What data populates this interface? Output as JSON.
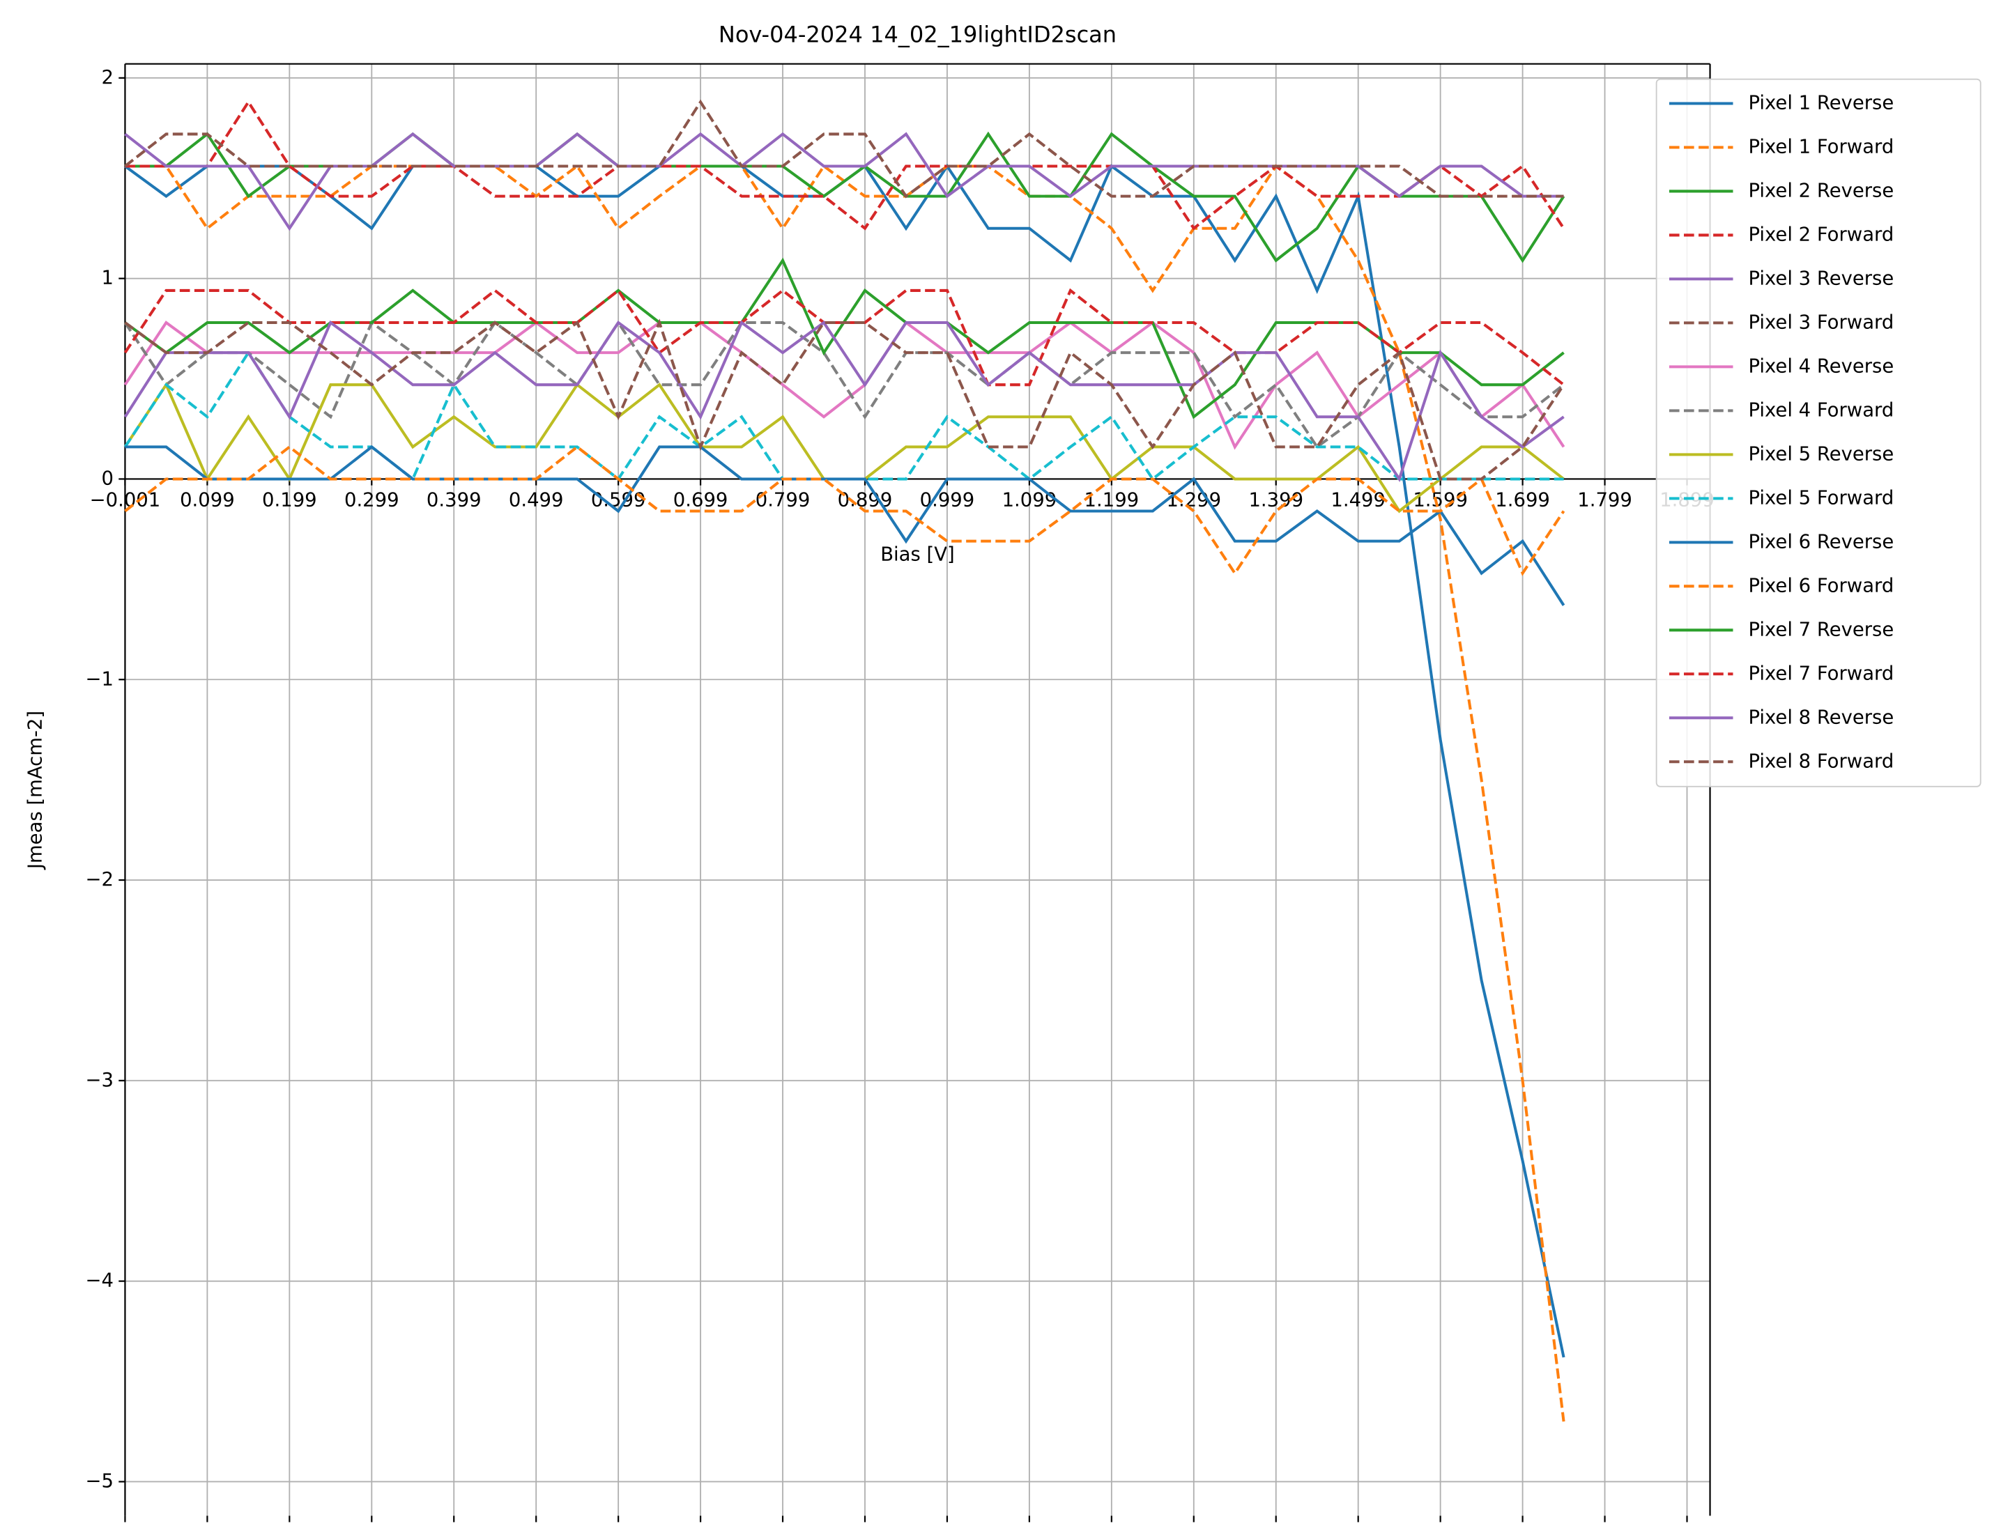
{
  "chart_data": {
    "type": "line",
    "title": "Nov-04-2024 14_02_19lightID2scan",
    "x_label": "Bias [V]",
    "y_label": "Jmeas [mAcm-2]",
    "x": [
      -0.001,
      0.049,
      0.099,
      0.149,
      0.199,
      0.249,
      0.299,
      0.349,
      0.399,
      0.449,
      0.499,
      0.549,
      0.599,
      0.649,
      0.699,
      0.749,
      0.799,
      0.849,
      0.899,
      0.949,
      0.999,
      1.049,
      1.099,
      1.149,
      1.199,
      1.249,
      1.299,
      1.349,
      1.399,
      1.449,
      1.499,
      1.549,
      1.599,
      1.649,
      1.699,
      1.749
    ],
    "xlim": [
      -0.001,
      1.927
    ],
    "xticks": [
      {
        "value": -0.001,
        "label": "−0.001"
      },
      0.099,
      0.199,
      0.299,
      0.399,
      0.499,
      0.599,
      0.699,
      0.799,
      0.899,
      0.999,
      1.099,
      1.199,
      1.299,
      1.399,
      1.499,
      1.599,
      1.699,
      1.799,
      1.899
    ],
    "ylim": [
      -5.17,
      2.07
    ],
    "yticks": [
      {
        "value": -5,
        "label": "−5"
      },
      {
        "value": -4,
        "label": "−4"
      },
      {
        "value": -3,
        "label": "−3"
      },
      {
        "value": -2,
        "label": "−2"
      },
      {
        "value": -1,
        "label": "−1"
      },
      0,
      1,
      2
    ],
    "grid": true,
    "legend": "outside upper right",
    "series": [
      {
        "name": "Pixel 1 Reverse",
        "color": "#1f77b4",
        "linestyle": "solid",
        "values": [
          1.56,
          1.41,
          1.56,
          1.56,
          1.56,
          1.41,
          1.25,
          1.56,
          1.56,
          1.56,
          1.56,
          1.41,
          1.41,
          1.56,
          1.56,
          1.56,
          1.41,
          1.41,
          1.56,
          1.25,
          1.56,
          1.25,
          1.25,
          1.09,
          1.56,
          1.41,
          1.41,
          1.09,
          1.41,
          0.94,
          1.41,
          0.16,
          -1.3,
          -2.5,
          -3.4,
          -4.38
        ]
      },
      {
        "name": "Pixel 1 Forward",
        "color": "#ff7f0e",
        "linestyle": "dashed",
        "values": [
          1.56,
          1.56,
          1.25,
          1.41,
          1.41,
          1.41,
          1.56,
          1.56,
          1.56,
          1.56,
          1.41,
          1.56,
          1.25,
          1.41,
          1.56,
          1.56,
          1.25,
          1.56,
          1.41,
          1.41,
          1.56,
          1.56,
          1.41,
          1.41,
          1.25,
          0.94,
          1.25,
          1.25,
          1.56,
          1.41,
          1.09,
          0.63,
          -0.2,
          -1.5,
          -3.0,
          -4.7
        ]
      },
      {
        "name": "Pixel 2 Reverse",
        "color": "#2ca02c",
        "linestyle": "solid",
        "values": [
          1.56,
          1.56,
          1.72,
          1.41,
          1.56,
          1.56,
          1.56,
          1.72,
          1.56,
          1.56,
          1.56,
          1.72,
          1.56,
          1.56,
          1.56,
          1.56,
          1.56,
          1.41,
          1.56,
          1.41,
          1.41,
          1.72,
          1.41,
          1.41,
          1.72,
          1.56,
          1.41,
          1.41,
          1.09,
          1.25,
          1.56,
          1.41,
          1.41,
          1.41,
          1.09,
          1.41
        ]
      },
      {
        "name": "Pixel 2 Forward",
        "color": "#d62728",
        "linestyle": "dashed",
        "values": [
          1.56,
          1.56,
          1.56,
          1.88,
          1.56,
          1.41,
          1.41,
          1.56,
          1.56,
          1.41,
          1.41,
          1.41,
          1.56,
          1.56,
          1.56,
          1.41,
          1.41,
          1.41,
          1.25,
          1.56,
          1.56,
          1.56,
          1.56,
          1.56,
          1.56,
          1.56,
          1.25,
          1.41,
          1.56,
          1.41,
          1.41,
          1.41,
          1.56,
          1.41,
          1.56,
          1.25
        ]
      },
      {
        "name": "Pixel 3 Reverse",
        "color": "#9467bd",
        "linestyle": "solid",
        "values": [
          1.72,
          1.56,
          1.56,
          1.56,
          1.25,
          1.56,
          1.56,
          1.72,
          1.56,
          1.56,
          1.56,
          1.72,
          1.56,
          1.56,
          1.72,
          1.56,
          1.72,
          1.56,
          1.56,
          1.72,
          1.41,
          1.56,
          1.56,
          1.41,
          1.56,
          1.56,
          1.56,
          1.56,
          1.56,
          1.56,
          1.56,
          1.41,
          1.56,
          1.56,
          1.41,
          1.41
        ]
      },
      {
        "name": "Pixel 3 Forward",
        "color": "#8c564b",
        "linestyle": "dashed",
        "values": [
          1.56,
          1.72,
          1.72,
          1.56,
          1.56,
          1.56,
          1.56,
          1.56,
          1.56,
          1.56,
          1.56,
          1.56,
          1.56,
          1.56,
          1.88,
          1.56,
          1.56,
          1.72,
          1.72,
          1.41,
          1.56,
          1.56,
          1.72,
          1.56,
          1.41,
          1.41,
          1.56,
          1.56,
          1.56,
          1.56,
          1.56,
          1.56,
          1.41,
          1.41,
          1.41,
          1.41
        ]
      },
      {
        "name": "Pixel 4 Reverse",
        "color": "#e377c2",
        "linestyle": "solid",
        "values": [
          0.47,
          0.78,
          0.63,
          0.63,
          0.63,
          0.63,
          0.63,
          0.63,
          0.63,
          0.63,
          0.78,
          0.63,
          0.63,
          0.78,
          0.78,
          0.63,
          0.47,
          0.31,
          0.47,
          0.78,
          0.63,
          0.63,
          0.63,
          0.78,
          0.63,
          0.78,
          0.63,
          0.16,
          0.47,
          0.63,
          0.31,
          0.47,
          0.63,
          0.31,
          0.47,
          0.16
        ]
      },
      {
        "name": "Pixel 4 Forward",
        "color": "#7f7f7f",
        "linestyle": "dashed",
        "values": [
          0.78,
          0.47,
          0.63,
          0.63,
          0.47,
          0.31,
          0.78,
          0.63,
          0.47,
          0.78,
          0.63,
          0.47,
          0.78,
          0.47,
          0.47,
          0.78,
          0.78,
          0.63,
          0.31,
          0.63,
          0.63,
          0.47,
          0.63,
          0.47,
          0.63,
          0.63,
          0.63,
          0.31,
          0.47,
          0.16,
          0.31,
          0.63,
          0.47,
          0.31,
          0.31,
          0.47
        ]
      },
      {
        "name": "Pixel 5 Reverse",
        "color": "#bcbd22",
        "linestyle": "solid",
        "values": [
          0.16,
          0.47,
          0,
          0.31,
          0,
          0.47,
          0.47,
          0.16,
          0.31,
          0.16,
          0.16,
          0.47,
          0.31,
          0.47,
          0.16,
          0.16,
          0.31,
          0,
          0,
          0.16,
          0.16,
          0.31,
          0.31,
          0.31,
          0,
          0.16,
          0.16,
          0,
          0,
          0,
          0.16,
          -0.16,
          0,
          0.16,
          0.16,
          0
        ]
      },
      {
        "name": "Pixel 5 Forward",
        "color": "#17becf",
        "linestyle": "dashed",
        "values": [
          0.16,
          0.47,
          0.31,
          0.63,
          0.31,
          0.16,
          0.16,
          0,
          0.47,
          0.16,
          0.16,
          0.16,
          0,
          0.31,
          0.16,
          0.31,
          0,
          0,
          0,
          0,
          0.31,
          0.16,
          0,
          0.16,
          0.31,
          0,
          0.16,
          0.31,
          0.31,
          0.16,
          0.16,
          0,
          0,
          0,
          0,
          0
        ]
      },
      {
        "name": "Pixel 6 Reverse",
        "color": "#1f77b4",
        "linestyle": "solid",
        "values": [
          0.16,
          0.16,
          0,
          0,
          0,
          0,
          0.16,
          0,
          0,
          0,
          0,
          0,
          -0.16,
          0.16,
          0.16,
          0,
          0,
          0,
          0,
          -0.31,
          0,
          0,
          0,
          -0.16,
          -0.16,
          -0.16,
          0,
          -0.31,
          -0.31,
          -0.16,
          -0.31,
          -0.31,
          -0.16,
          -0.47,
          -0.31,
          -0.63
        ]
      },
      {
        "name": "Pixel 6 Forward",
        "color": "#ff7f0e",
        "linestyle": "dashed",
        "values": [
          -0.16,
          0,
          0,
          0,
          0.16,
          0,
          0,
          0,
          0,
          0,
          0,
          0.16,
          0,
          -0.16,
          -0.16,
          -0.16,
          0,
          0,
          -0.16,
          -0.16,
          -0.31,
          -0.31,
          -0.31,
          -0.16,
          0,
          0,
          -0.16,
          -0.47,
          -0.16,
          0,
          0,
          -0.16,
          -0.16,
          0,
          -0.47,
          -0.16
        ]
      },
      {
        "name": "Pixel 7 Reverse",
        "color": "#2ca02c",
        "linestyle": "solid",
        "values": [
          0.78,
          0.63,
          0.78,
          0.78,
          0.63,
          0.78,
          0.78,
          0.94,
          0.78,
          0.78,
          0.78,
          0.78,
          0.94,
          0.78,
          0.78,
          0.78,
          1.09,
          0.63,
          0.94,
          0.78,
          0.78,
          0.63,
          0.78,
          0.78,
          0.78,
          0.78,
          0.31,
          0.47,
          0.78,
          0.78,
          0.78,
          0.63,
          0.63,
          0.47,
          0.47,
          0.63
        ]
      },
      {
        "name": "Pixel 7 Forward",
        "color": "#d62728",
        "linestyle": "dashed",
        "values": [
          0.63,
          0.94,
          0.94,
          0.94,
          0.78,
          0.78,
          0.78,
          0.78,
          0.78,
          0.94,
          0.78,
          0.78,
          0.94,
          0.63,
          0.78,
          0.78,
          0.94,
          0.78,
          0.78,
          0.94,
          0.94,
          0.47,
          0.47,
          0.94,
          0.78,
          0.78,
          0.78,
          0.63,
          0.63,
          0.78,
          0.78,
          0.63,
          0.78,
          0.78,
          0.63,
          0.47
        ]
      },
      {
        "name": "Pixel 8 Reverse",
        "color": "#9467bd",
        "linestyle": "solid",
        "values": [
          0.31,
          0.63,
          0.63,
          0.63,
          0.31,
          0.78,
          0.63,
          0.47,
          0.47,
          0.63,
          0.47,
          0.47,
          0.78,
          0.63,
          0.31,
          0.78,
          0.63,
          0.78,
          0.47,
          0.78,
          0.78,
          0.47,
          0.63,
          0.47,
          0.47,
          0.47,
          0.47,
          0.63,
          0.63,
          0.31,
          0.31,
          0,
          0.63,
          0.31,
          0.16,
          0.31
        ]
      },
      {
        "name": "Pixel 8 Forward",
        "color": "#8c564b",
        "linestyle": "dashed",
        "values": [
          0.78,
          0.63,
          0.63,
          0.78,
          0.78,
          0.63,
          0.47,
          0.63,
          0.63,
          0.78,
          0.63,
          0.78,
          0.31,
          0.78,
          0.16,
          0.63,
          0.47,
          0.78,
          0.78,
          0.63,
          0.63,
          0.16,
          0.16,
          0.63,
          0.47,
          0.16,
          0.47,
          0.63,
          0.16,
          0.16,
          0.47,
          0.63,
          0,
          0,
          0.16,
          0.47
        ]
      }
    ]
  }
}
